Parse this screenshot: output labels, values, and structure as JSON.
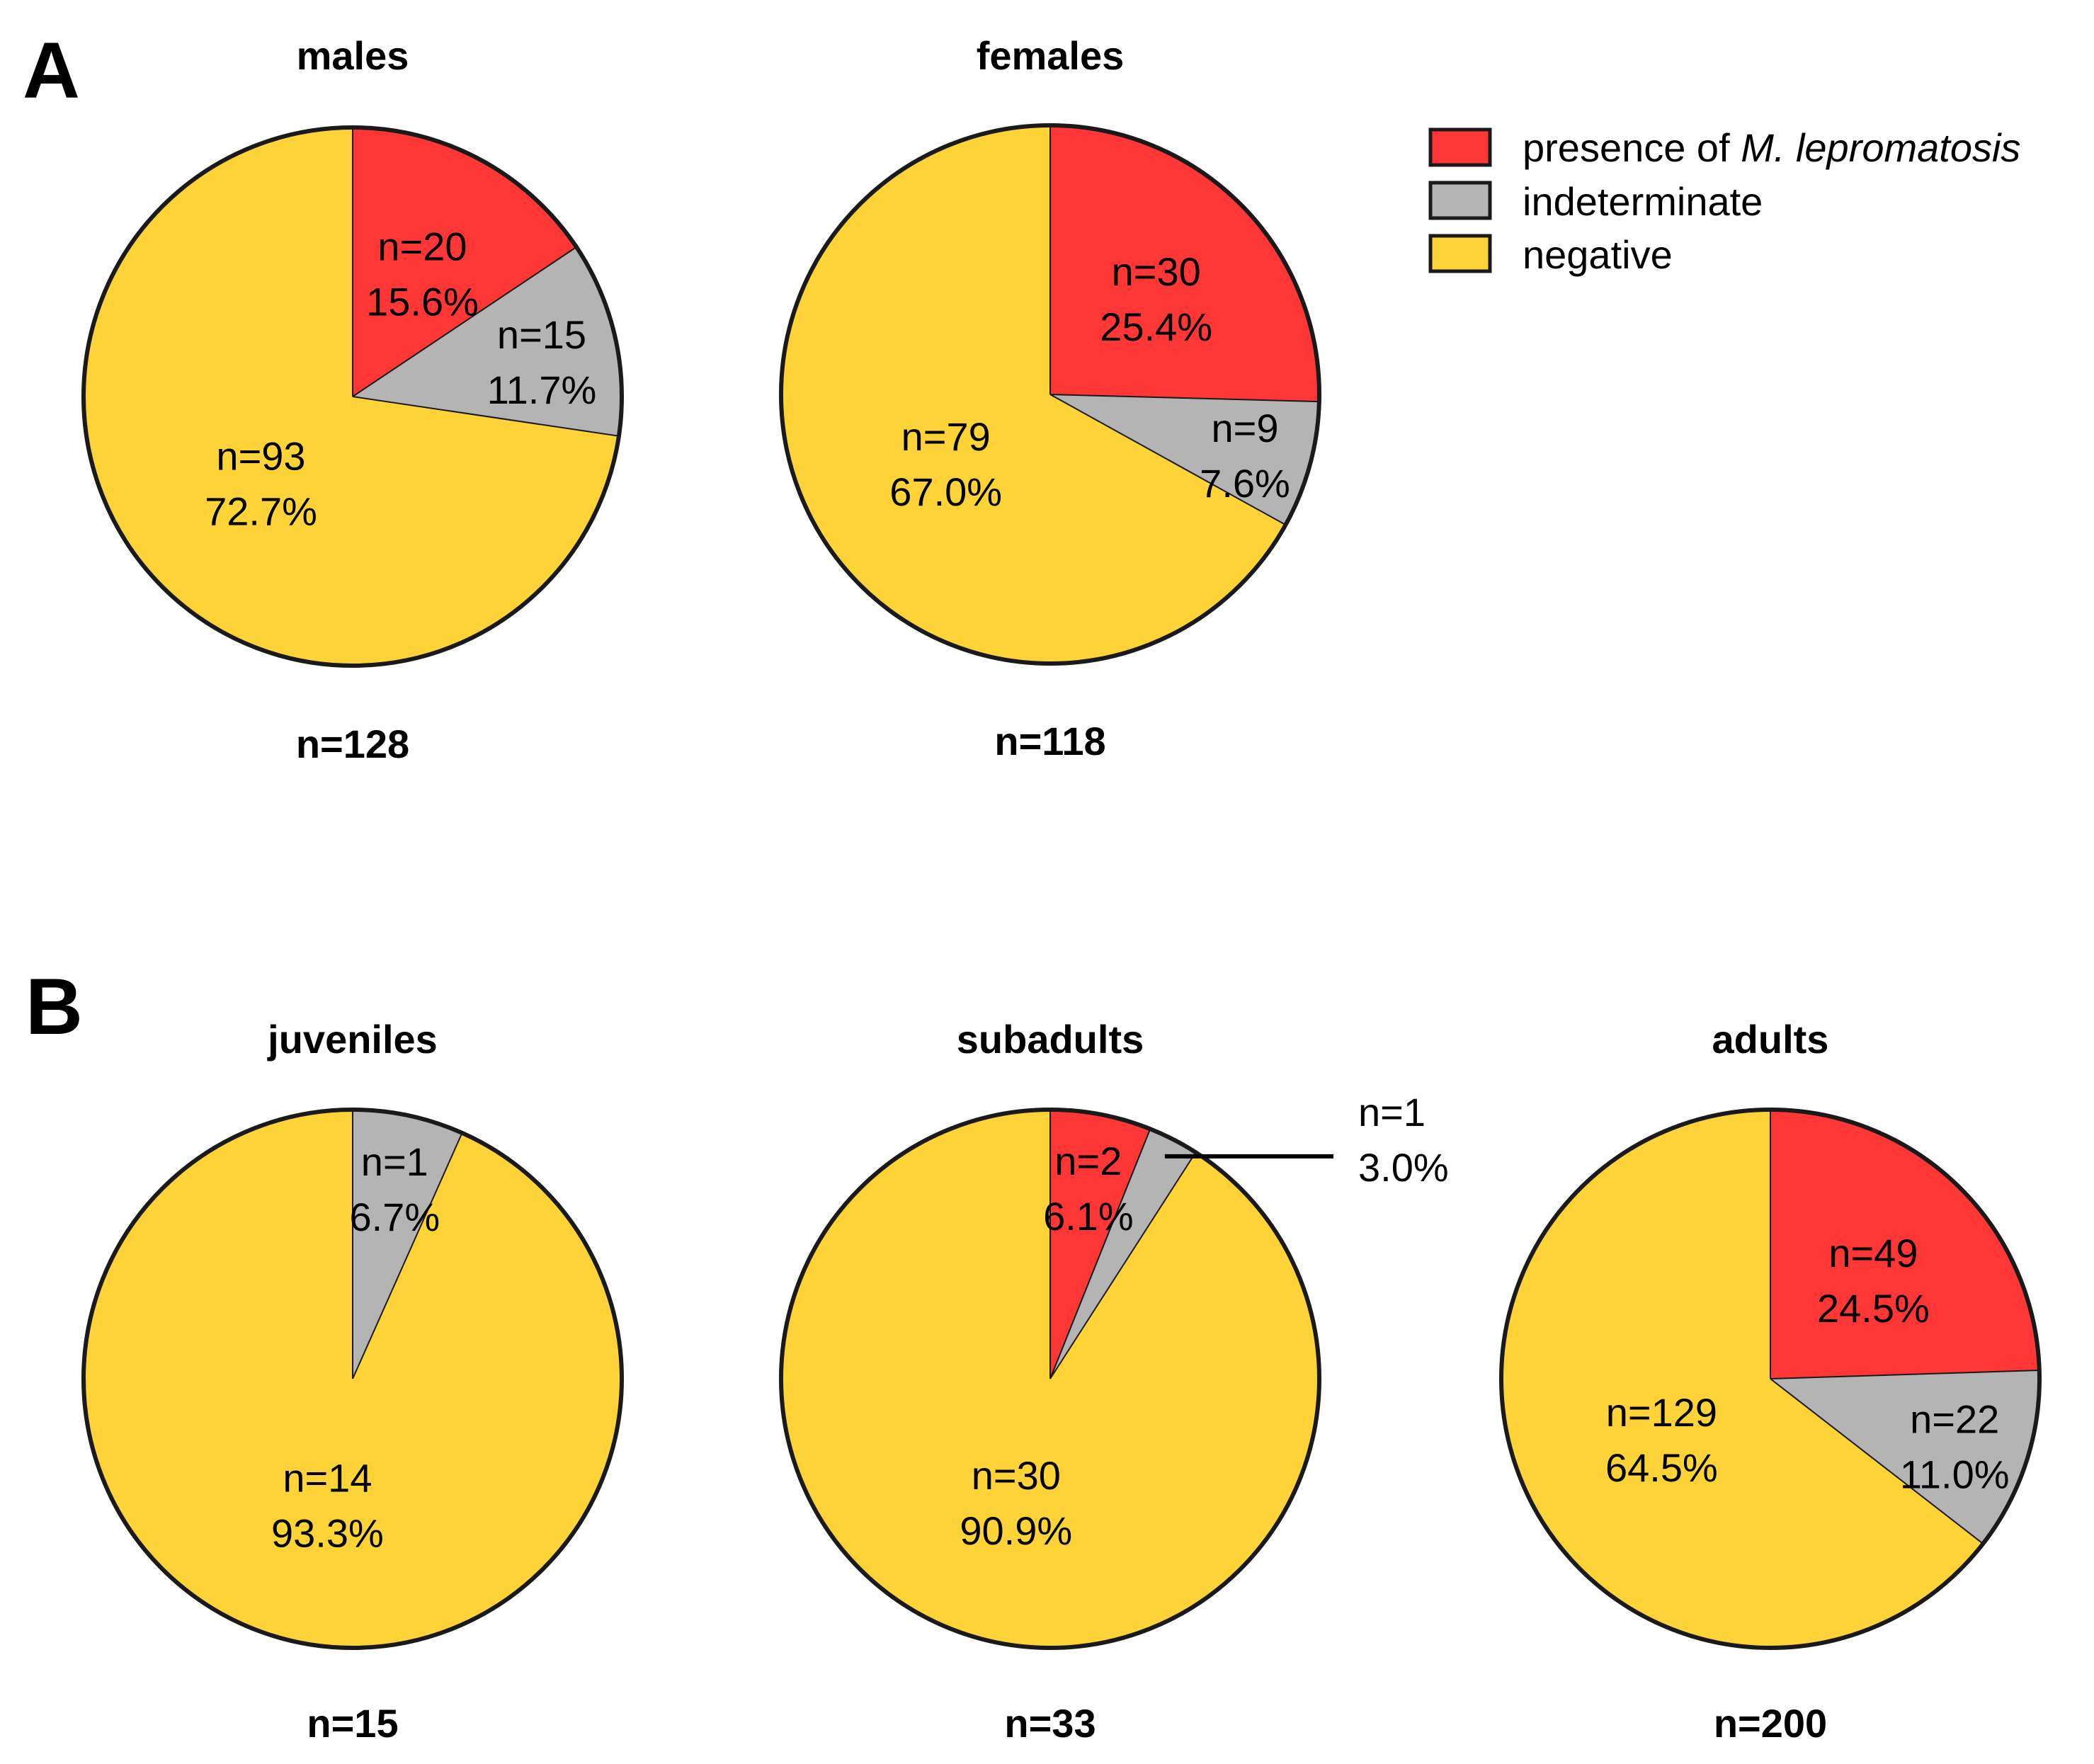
{
  "panels": [
    {
      "letter": "A",
      "charts": [
        0,
        1
      ]
    },
    {
      "letter": "B",
      "charts": [
        2,
        3,
        4
      ]
    }
  ],
  "colors": {
    "presence": "#FE3636",
    "indeterminate": "#B4B4B4",
    "negative": "#FED338",
    "outline": "#1A1A1A"
  },
  "legend": {
    "position": "top-right",
    "items": [
      {
        "key": "presence",
        "text": "presence of ",
        "italic": "M. lepromatosis"
      },
      {
        "key": "indeterminate",
        "text": "indeterminate"
      },
      {
        "key": "negative",
        "text": "negative"
      }
    ]
  },
  "chart_data": [
    {
      "type": "pie",
      "panel": "A",
      "title": "males",
      "total_label": "n=128",
      "slices": [
        {
          "category": "presence",
          "count": 20,
          "percent": 15.6,
          "label_n": "n=20",
          "label_pct": "15.6%"
        },
        {
          "category": "indeterminate",
          "count": 15,
          "percent": 11.7,
          "label_n": "n=15",
          "label_pct": "11.7%"
        },
        {
          "category": "negative",
          "count": 93,
          "percent": 72.7,
          "label_n": "n=93",
          "label_pct": "72.7%"
        }
      ]
    },
    {
      "type": "pie",
      "panel": "A",
      "title": "females",
      "total_label": "n=118",
      "slices": [
        {
          "category": "presence",
          "count": 30,
          "percent": 25.4,
          "label_n": "n=30",
          "label_pct": "25.4%"
        },
        {
          "category": "indeterminate",
          "count": 9,
          "percent": 7.6,
          "label_n": "n=9",
          "label_pct": "7.6%"
        },
        {
          "category": "negative",
          "count": 79,
          "percent": 67.0,
          "label_n": "n=79",
          "label_pct": "67.0%"
        }
      ]
    },
    {
      "type": "pie",
      "panel": "B",
      "title": "juveniles",
      "total_label": "n=15",
      "slices": [
        {
          "category": "presence",
          "count": 0,
          "percent": 0
        },
        {
          "category": "indeterminate",
          "count": 1,
          "percent": 6.7,
          "label_n": "n=1",
          "label_pct": "6.7%"
        },
        {
          "category": "negative",
          "count": 14,
          "percent": 93.3,
          "label_n": "n=14",
          "label_pct": "93.3%"
        }
      ]
    },
    {
      "type": "pie",
      "panel": "B",
      "title": "subadults",
      "total_label": "n=33",
      "slices": [
        {
          "category": "presence",
          "count": 2,
          "percent": 6.1,
          "label_n": "n=2",
          "label_pct": "6.1%"
        },
        {
          "category": "indeterminate",
          "count": 1,
          "percent": 3.0,
          "label_n": "n=1",
          "label_pct": "3.0%",
          "callout": true
        },
        {
          "category": "negative",
          "count": 30,
          "percent": 90.9,
          "label_n": "n=30",
          "label_pct": "90.9%"
        }
      ]
    },
    {
      "type": "pie",
      "panel": "B",
      "title": "adults",
      "total_label": "n=200",
      "slices": [
        {
          "category": "presence",
          "count": 49,
          "percent": 24.5,
          "label_n": "n=49",
          "label_pct": "24.5%"
        },
        {
          "category": "indeterminate",
          "count": 22,
          "percent": 11.0,
          "label_n": "n=22",
          "label_pct": "11.0%"
        },
        {
          "category": "negative",
          "count": 129,
          "percent": 64.5,
          "label_n": "n=129",
          "label_pct": "64.5%"
        }
      ]
    }
  ]
}
